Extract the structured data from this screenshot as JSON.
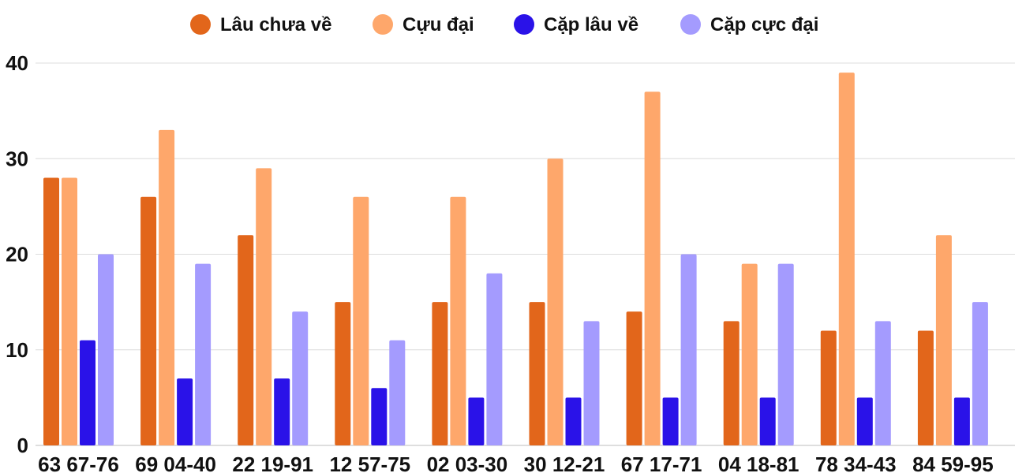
{
  "chart_data": {
    "type": "bar",
    "categories": [
      "63 67-76",
      "69 04-40",
      "22 19-91",
      "12 57-75",
      "02 03-30",
      "30 12-21",
      "67 17-71",
      "04 18-81",
      "78 34-43",
      "84 59-95"
    ],
    "series": [
      {
        "name": "Lâu chưa về",
        "color": "#e2661b",
        "values": [
          28,
          26,
          22,
          15,
          15,
          15,
          14,
          13,
          12,
          12
        ]
      },
      {
        "name": "Cựu đại",
        "color": "#fea76b",
        "values": [
          28,
          33,
          29,
          26,
          26,
          30,
          37,
          19,
          39,
          22
        ]
      },
      {
        "name": "Cặp lâu về",
        "color": "#2a12e8",
        "values": [
          11,
          7,
          7,
          6,
          5,
          5,
          5,
          5,
          5,
          5
        ]
      },
      {
        "name": "Cặp cực đại",
        "color": "#a49bfe",
        "values": [
          20,
          19,
          14,
          11,
          18,
          13,
          20,
          19,
          13,
          15
        ]
      }
    ],
    "ylim": [
      0,
      40
    ],
    "yticks": [
      0,
      10,
      20,
      30,
      40
    ],
    "grid": true,
    "legend": "top-center"
  }
}
